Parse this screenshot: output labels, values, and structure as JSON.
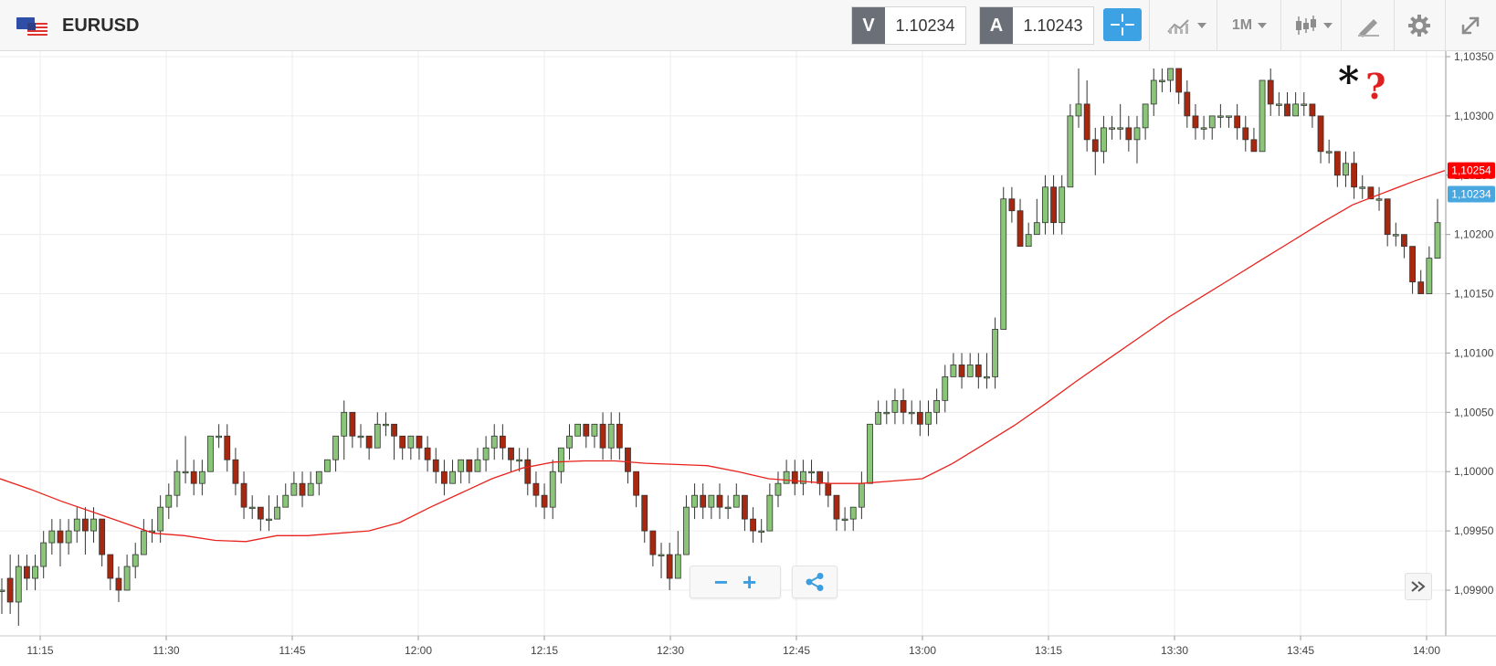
{
  "toolbar": {
    "symbol": "EURUSD",
    "bid_tag": "V",
    "bid_value": "1.10234",
    "ask_tag": "A",
    "ask_value": "1.10243",
    "timeframe": "1M",
    "icons": [
      "flag-icon",
      "crosshair-icon",
      "line-chart-icon",
      "candlestick-icon",
      "drawing-icon",
      "gear-icon",
      "fullscreen-icon"
    ]
  },
  "chart_data": {
    "type": "candlestick",
    "ylim": [
      1.0988,
      1.1036
    ],
    "y_ticks": [
      "1,10350",
      "1,10300",
      "1,10250",
      "1,10200",
      "1,10150",
      "1,10100",
      "1,10050",
      "1,10000",
      "1,09950",
      "1,09900"
    ],
    "x_ticks": [
      "11:15",
      "11:30",
      "11:45",
      "12:00",
      "12:15",
      "12:30",
      "12:45",
      "13:00",
      "13:15",
      "13:30",
      "13:45",
      "14:00"
    ],
    "price_labels": [
      {
        "text": "1,10254",
        "color": "#ff0000",
        "value": 1.10254
      },
      {
        "text": "1,10234",
        "color": "#49a7e0",
        "value": 1.10234
      }
    ],
    "annotation_star": "*",
    "annotation_question": "?",
    "colors": {
      "bull": "#8bc57a",
      "bear": "#a8270f",
      "ma": "#e8221c",
      "grid": "#ececec"
    },
    "candles": [
      [
        1.099,
        1.099,
        1.0988,
        1.0991
      ],
      [
        1.0991,
        1.0989,
        1.0988,
        1.0993
      ],
      [
        1.0989,
        1.0992,
        1.0987,
        1.0993
      ],
      [
        1.0992,
        1.0991,
        1.099,
        1.0993
      ],
      [
        1.0991,
        1.0992,
        1.099,
        1.0993
      ],
      [
        1.0992,
        1.0994,
        1.0991,
        1.0995
      ],
      [
        1.0994,
        1.0995,
        1.0993,
        1.0996
      ],
      [
        1.0995,
        1.0994,
        1.0992,
        1.0996
      ],
      [
        1.0994,
        1.0995,
        1.0993,
        1.0996
      ],
      [
        1.0995,
        1.0996,
        1.0994,
        1.0997
      ],
      [
        1.0996,
        1.0995,
        1.0993,
        1.0997
      ],
      [
        1.0995,
        1.0996,
        1.0994,
        1.0997
      ],
      [
        1.0996,
        1.0993,
        1.0992,
        1.0996
      ],
      [
        1.0993,
        1.0991,
        1.099,
        1.0993
      ],
      [
        1.0991,
        1.099,
        1.0989,
        1.0992
      ],
      [
        1.099,
        1.0992,
        1.099,
        1.0993
      ],
      [
        1.0992,
        1.0993,
        1.0991,
        1.0994
      ],
      [
        1.0993,
        1.0995,
        1.0993,
        1.0996
      ],
      [
        1.0995,
        1.0995,
        1.0994,
        1.0996
      ],
      [
        1.0995,
        1.0997,
        1.0994,
        1.0998
      ],
      [
        1.0997,
        1.0998,
        1.0996,
        1.0999
      ],
      [
        1.0998,
        1.1,
        1.0997,
        1.1001
      ],
      [
        1.1,
        1.1,
        1.0999,
        1.1003
      ],
      [
        1.1,
        1.0999,
        1.0998,
        1.1001
      ],
      [
        1.0999,
        1.1,
        1.0998,
        1.1001
      ],
      [
        1.1,
        1.1003,
        1.1,
        1.1003
      ],
      [
        1.1003,
        1.1003,
        1.1002,
        1.1004
      ],
      [
        1.1003,
        1.1001,
        1.1,
        1.1004
      ],
      [
        1.1001,
        1.0999,
        1.0998,
        1.1002
      ],
      [
        1.0999,
        1.0997,
        1.0996,
        1.1
      ],
      [
        1.0997,
        1.0997,
        1.0996,
        1.0998
      ],
      [
        1.0997,
        1.0996,
        1.0995,
        1.0997
      ],
      [
        1.0996,
        1.0996,
        1.0995,
        1.0998
      ],
      [
        1.0996,
        1.0997,
        1.0996,
        1.0998
      ],
      [
        1.0997,
        1.0998,
        1.0997,
        1.0999
      ],
      [
        1.0998,
        1.0999,
        1.0998,
        1.1
      ],
      [
        1.0999,
        1.0998,
        1.0997,
        1.1
      ],
      [
        1.0998,
        1.0999,
        1.0998,
        1.1
      ],
      [
        1.0999,
        1.1,
        1.0998,
        1.1
      ],
      [
        1.1,
        1.1001,
        1.1,
        1.1001
      ],
      [
        1.1001,
        1.1003,
        1.1,
        1.1003
      ],
      [
        1.1003,
        1.1005,
        1.1001,
        1.1006
      ],
      [
        1.1005,
        1.1003,
        1.1002,
        1.1005
      ],
      [
        1.1003,
        1.1003,
        1.1002,
        1.1004
      ],
      [
        1.1003,
        1.1002,
        1.1001,
        1.1003
      ],
      [
        1.1002,
        1.1004,
        1.1002,
        1.1005
      ],
      [
        1.1004,
        1.1004,
        1.1003,
        1.1005
      ],
      [
        1.1004,
        1.1003,
        1.1001,
        1.1004
      ],
      [
        1.1003,
        1.1002,
        1.1001,
        1.1003
      ],
      [
        1.1002,
        1.1003,
        1.1001,
        1.1003
      ],
      [
        1.1003,
        1.1002,
        1.1001,
        1.1003
      ],
      [
        1.1002,
        1.1001,
        1.1,
        1.1003
      ],
      [
        1.1001,
        1.1,
        1.0999,
        1.1002
      ],
      [
        1.1,
        1.0999,
        1.0998,
        1.1001
      ],
      [
        1.0999,
        1.1,
        1.0999,
        1.1001
      ],
      [
        1.1,
        1.1001,
        1.0999,
        1.1001
      ],
      [
        1.1001,
        1.1,
        1.0999,
        1.1001
      ],
      [
        1.1,
        1.1001,
        1.1,
        1.1002
      ],
      [
        1.1001,
        1.1002,
        1.1,
        1.1003
      ],
      [
        1.1002,
        1.1003,
        1.1001,
        1.1004
      ],
      [
        1.1003,
        1.1002,
        1.1001,
        1.1004
      ],
      [
        1.1002,
        1.1001,
        1.1,
        1.1002
      ],
      [
        1.1001,
        1.1001,
        1.1,
        1.1002
      ],
      [
        1.1001,
        1.0999,
        1.0998,
        1.1002
      ],
      [
        1.0999,
        1.0998,
        1.0997,
        1.1
      ],
      [
        1.0998,
        1.0997,
        1.0996,
        1.0999
      ],
      [
        1.0997,
        1.1,
        1.0996,
        1.1001
      ],
      [
        1.1,
        1.1002,
        1.0999,
        1.1002
      ],
      [
        1.1002,
        1.1003,
        1.1001,
        1.1004
      ],
      [
        1.1003,
        1.1004,
        1.1003,
        1.1004
      ],
      [
        1.1004,
        1.1003,
        1.1002,
        1.1004
      ],
      [
        1.1003,
        1.1004,
        1.1002,
        1.1004
      ],
      [
        1.1004,
        1.1002,
        1.1001,
        1.1005
      ],
      [
        1.1002,
        1.1004,
        1.1001,
        1.1005
      ],
      [
        1.1004,
        1.1002,
        1.1001,
        1.1005
      ],
      [
        1.1002,
        1.1,
        1.0999,
        1.1002
      ],
      [
        1.1,
        1.0998,
        1.0997,
        1.1
      ],
      [
        1.0998,
        1.0995,
        1.0994,
        1.0998
      ],
      [
        1.0995,
        1.0993,
        1.0992,
        1.0995
      ],
      [
        1.0993,
        1.0993,
        1.0991,
        1.0994
      ],
      [
        1.0993,
        1.0991,
        1.099,
        1.0994
      ],
      [
        1.0991,
        1.0993,
        1.0991,
        1.0995
      ],
      [
        1.0993,
        1.0997,
        1.0993,
        1.0998
      ],
      [
        1.0997,
        1.0998,
        1.0996,
        1.0999
      ],
      [
        1.0998,
        1.0997,
        1.0996,
        1.0999
      ],
      [
        1.0997,
        1.0998,
        1.0996,
        1.0998
      ],
      [
        1.0998,
        1.0997,
        1.0996,
        1.0999
      ],
      [
        1.0997,
        1.0997,
        1.0996,
        1.0998
      ],
      [
        1.0997,
        1.0998,
        1.0997,
        1.0999
      ],
      [
        1.0998,
        1.0996,
        1.0995,
        1.0998
      ],
      [
        1.0996,
        1.0995,
        1.0994,
        1.0997
      ],
      [
        1.0995,
        1.0995,
        1.0994,
        1.0996
      ],
      [
        1.0995,
        1.0998,
        1.0995,
        1.0999
      ],
      [
        1.0998,
        1.0999,
        1.0997,
        1.1
      ],
      [
        1.0999,
        1.1,
        1.0999,
        1.1001
      ],
      [
        1.1,
        1.0999,
        1.0998,
        1.1001
      ],
      [
        1.0999,
        1.1,
        1.0998,
        1.1001
      ],
      [
        1.1,
        1.1,
        1.0999,
        1.1001
      ],
      [
        1.1,
        1.0999,
        1.0998,
        1.1
      ],
      [
        1.0999,
        1.0998,
        1.0997,
        1.1
      ],
      [
        1.0998,
        1.0996,
        1.0995,
        1.0998
      ],
      [
        1.0996,
        1.0996,
        1.0995,
        1.0997
      ],
      [
        1.0996,
        1.0997,
        1.0995,
        1.0997
      ],
      [
        1.0997,
        1.0999,
        1.0996,
        1.1
      ],
      [
        1.0999,
        1.1004,
        1.0999,
        1.1004
      ],
      [
        1.1004,
        1.1005,
        1.1004,
        1.1006
      ],
      [
        1.1005,
        1.1005,
        1.1004,
        1.1006
      ],
      [
        1.1005,
        1.1006,
        1.1004,
        1.1007
      ],
      [
        1.1006,
        1.1005,
        1.1004,
        1.1007
      ],
      [
        1.1005,
        1.1005,
        1.1004,
        1.1006
      ],
      [
        1.1005,
        1.1004,
        1.1003,
        1.1006
      ],
      [
        1.1004,
        1.1005,
        1.1003,
        1.1006
      ],
      [
        1.1005,
        1.1006,
        1.1004,
        1.1007
      ],
      [
        1.1006,
        1.1008,
        1.1005,
        1.1009
      ],
      [
        1.1008,
        1.1009,
        1.1008,
        1.101
      ],
      [
        1.1009,
        1.1008,
        1.1007,
        1.101
      ],
      [
        1.1008,
        1.1009,
        1.1008,
        1.101
      ],
      [
        1.1009,
        1.1008,
        1.1007,
        1.101
      ],
      [
        1.1008,
        1.1008,
        1.1007,
        1.101
      ],
      [
        1.1008,
        1.1012,
        1.1007,
        1.1013
      ],
      [
        1.1012,
        1.1023,
        1.1012,
        1.1024
      ],
      [
        1.1023,
        1.1022,
        1.1021,
        1.1024
      ],
      [
        1.1022,
        1.1019,
        1.1019,
        1.1023
      ],
      [
        1.1019,
        1.102,
        1.1019,
        1.1021
      ],
      [
        1.102,
        1.1021,
        1.102,
        1.1023
      ],
      [
        1.1021,
        1.1024,
        1.102,
        1.1025
      ],
      [
        1.1024,
        1.1021,
        1.102,
        1.1025
      ],
      [
        1.1021,
        1.1024,
        1.102,
        1.1025
      ],
      [
        1.1024,
        1.103,
        1.1024,
        1.1031
      ],
      [
        1.103,
        1.1031,
        1.1029,
        1.1034
      ],
      [
        1.1031,
        1.1028,
        1.1027,
        1.1033
      ],
      [
        1.1028,
        1.1027,
        1.1025,
        1.1029
      ],
      [
        1.1027,
        1.1029,
        1.1026,
        1.103
      ],
      [
        1.1029,
        1.1029,
        1.1028,
        1.103
      ],
      [
        1.1029,
        1.1029,
        1.1028,
        1.1031
      ],
      [
        1.1029,
        1.1028,
        1.1027,
        1.103
      ],
      [
        1.1028,
        1.1029,
        1.1026,
        1.103
      ],
      [
        1.1029,
        1.1031,
        1.1028,
        1.1031
      ],
      [
        1.1031,
        1.1033,
        1.103,
        1.1034
      ],
      [
        1.1033,
        1.1033,
        1.1032,
        1.1034
      ],
      [
        1.1033,
        1.1034,
        1.1032,
        1.1034
      ],
      [
        1.1034,
        1.1032,
        1.1031,
        1.1034
      ],
      [
        1.1032,
        1.103,
        1.1029,
        1.1033
      ],
      [
        1.103,
        1.1029,
        1.1028,
        1.1031
      ],
      [
        1.1029,
        1.1029,
        1.1028,
        1.103
      ],
      [
        1.1029,
        1.103,
        1.1028,
        1.103
      ],
      [
        1.103,
        1.103,
        1.1029,
        1.1031
      ],
      [
        1.103,
        1.103,
        1.1029,
        1.103
      ],
      [
        1.103,
        1.1029,
        1.1028,
        1.1031
      ],
      [
        1.1029,
        1.1028,
        1.1027,
        1.103
      ],
      [
        1.1028,
        1.1027,
        1.1027,
        1.1029
      ],
      [
        1.1027,
        1.1033,
        1.1027,
        1.1033
      ],
      [
        1.1033,
        1.1031,
        1.103,
        1.1034
      ],
      [
        1.1031,
        1.1031,
        1.103,
        1.1032
      ],
      [
        1.1031,
        1.103,
        1.103,
        1.1032
      ],
      [
        1.103,
        1.1031,
        1.103,
        1.1032
      ],
      [
        1.1031,
        1.1031,
        1.103,
        1.1032
      ],
      [
        1.1031,
        1.103,
        1.1029,
        1.1031
      ],
      [
        1.103,
        1.1027,
        1.1026,
        1.103
      ],
      [
        1.1027,
        1.1027,
        1.1026,
        1.1028
      ],
      [
        1.1027,
        1.1025,
        1.1024,
        1.1027
      ],
      [
        1.1025,
        1.1026,
        1.1024,
        1.1027
      ],
      [
        1.1026,
        1.1024,
        1.1023,
        1.1027
      ],
      [
        1.1024,
        1.1024,
        1.1023,
        1.1025
      ],
      [
        1.1024,
        1.1023,
        1.1023,
        1.1024
      ],
      [
        1.1023,
        1.1023,
        1.1022,
        1.1024
      ],
      [
        1.1023,
        1.102,
        1.1019,
        1.1023
      ],
      [
        1.102,
        1.102,
        1.1019,
        1.1021
      ],
      [
        1.102,
        1.1019,
        1.1018,
        1.102
      ],
      [
        1.1019,
        1.1016,
        1.1015,
        1.1019
      ],
      [
        1.1016,
        1.1015,
        1.1015,
        1.1017
      ],
      [
        1.1015,
        1.1018,
        1.1015,
        1.1019
      ],
      [
        1.1018,
        1.1021,
        1.1018,
        1.1023
      ]
    ],
    "ma": [
      1.09994,
      1.09985,
      1.09975,
      1.09966,
      1.09957,
      1.09948,
      1.09946,
      1.09942,
      1.09941,
      1.09946,
      1.09946,
      1.09948,
      1.0995,
      1.09957,
      1.0997,
      1.09982,
      1.09994,
      1.10003,
      1.10008,
      1.10009,
      1.10009,
      1.10007,
      1.10006,
      1.10005,
      1.1,
      1.09994,
      1.09992,
      1.0999,
      1.0999,
      1.09992,
      1.09994,
      1.10007,
      1.10023,
      1.10039,
      1.10057,
      1.10076,
      1.10094,
      1.10112,
      1.1013,
      1.10146,
      1.10162,
      1.10178,
      1.10194,
      1.1021,
      1.10225,
      1.10235,
      1.10245,
      1.10254
    ],
    "annotation_at_candle": 159
  }
}
